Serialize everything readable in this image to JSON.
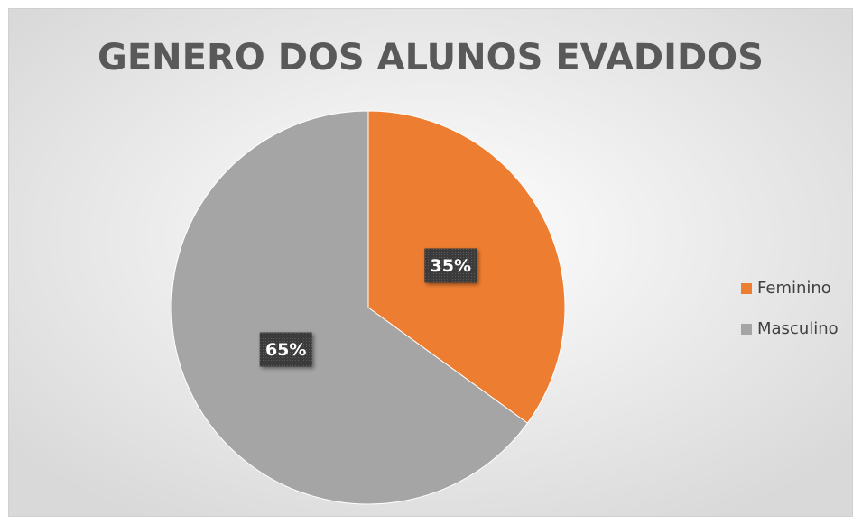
{
  "chart_data": {
    "type": "pie",
    "title": "GENERO DOS ALUNOS EVADIDOS",
    "categories": [
      "Feminino",
      "Masculino"
    ],
    "values": [
      35,
      65
    ],
    "value_labels": [
      "35%",
      "65%"
    ],
    "colors": [
      "#ed7d31",
      "#a5a5a5"
    ],
    "legend": "right"
  }
}
